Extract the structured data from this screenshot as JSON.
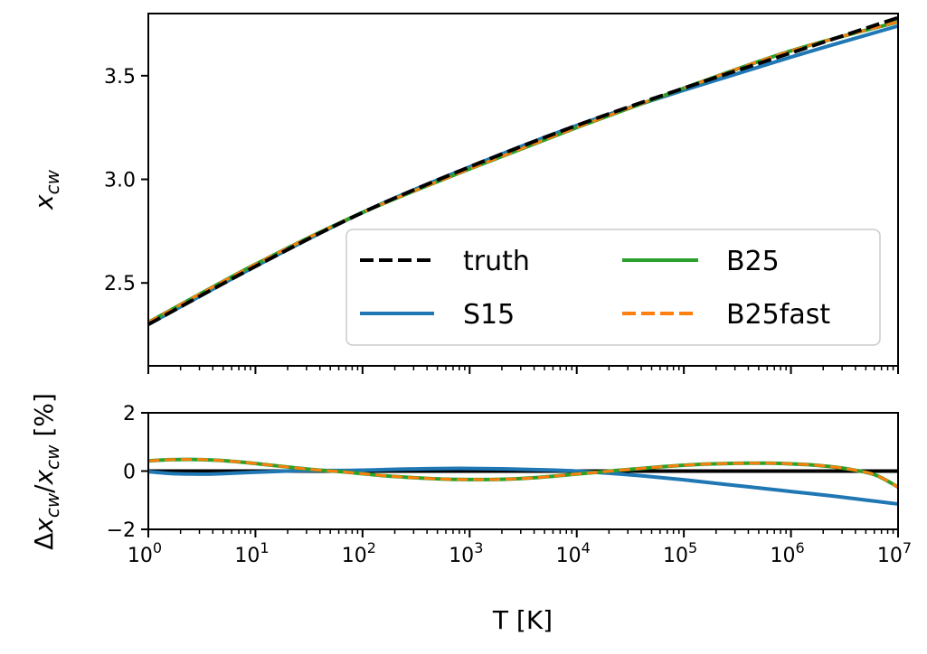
{
  "chart_data": [
    {
      "type": "line",
      "panel": "top",
      "xscale": "log",
      "xlim": [
        1,
        10000000
      ],
      "ylim": [
        2.1,
        3.8
      ],
      "ylabel": "x_cw",
      "yticks": [
        "2.5",
        "3.0",
        "3.5"
      ],
      "ytick_values": [
        2.5,
        3.0,
        3.5
      ],
      "x_log10": [
        0,
        1,
        2,
        3,
        4,
        5,
        6,
        7
      ],
      "series": [
        {
          "name": "truth",
          "color": "#000000",
          "dash": "dashed",
          "values": [
            2.3,
            2.58,
            2.84,
            3.06,
            3.26,
            3.44,
            3.61,
            3.78
          ]
        },
        {
          "name": "S15",
          "color": "#1f77b4",
          "dash": "solid",
          "values": [
            2.3,
            2.58,
            2.84,
            3.06,
            3.26,
            3.43,
            3.59,
            3.74
          ]
        },
        {
          "name": "B25",
          "color": "#2ca02c",
          "dash": "solid",
          "values": [
            2.31,
            2.59,
            2.84,
            3.05,
            3.25,
            3.44,
            3.62,
            3.76
          ]
        },
        {
          "name": "B25fast",
          "color": "#ff7f0e",
          "dash": "dashed",
          "values": [
            2.31,
            2.59,
            2.84,
            3.05,
            3.25,
            3.44,
            3.62,
            3.76
          ]
        }
      ],
      "legend": {
        "location": "lower-right",
        "columns": 2,
        "order": [
          "truth",
          "S15",
          "B25",
          "B25fast"
        ]
      }
    },
    {
      "type": "line",
      "panel": "bottom",
      "xscale": "log",
      "xlabel": "T [K]",
      "ylabel": "Δx_cw/x_cw [%]",
      "xlim": [
        1,
        10000000
      ],
      "ylim": [
        -2,
        2
      ],
      "yticks": [
        "−2",
        "0",
        "2"
      ],
      "ytick_values": [
        -2,
        0,
        2
      ],
      "xtick_exponents": [
        "0",
        "1",
        "2",
        "3",
        "4",
        "5",
        "6",
        "7"
      ],
      "xtick_base": "10",
      "x_log10": [
        0,
        0.2,
        0.4,
        0.6,
        0.8,
        1.0,
        1.2,
        1.4,
        1.6,
        1.8,
        2.0,
        2.2,
        2.4,
        2.6,
        2.8,
        3.0,
        3.2,
        3.4,
        3.6,
        3.8,
        4.0,
        4.2,
        4.4,
        4.6,
        4.8,
        5.0,
        5.2,
        5.4,
        5.6,
        5.8,
        6.0,
        6.2,
        6.4,
        6.6,
        6.8,
        7.0
      ],
      "series": [
        {
          "name": "truth",
          "color": "#000000",
          "dash": "solid",
          "values": [
            0,
            0,
            0,
            0,
            0,
            0,
            0,
            0,
            0,
            0,
            0,
            0,
            0,
            0,
            0,
            0,
            0,
            0,
            0,
            0,
            0,
            0,
            0,
            0,
            0,
            0,
            0,
            0,
            0,
            0,
            0,
            0,
            0,
            0,
            0,
            0
          ]
        },
        {
          "name": "S15",
          "color": "#1f77b4",
          "dash": "solid",
          "values": [
            -0.02,
            -0.08,
            -0.1,
            -0.1,
            -0.07,
            -0.04,
            -0.01,
            0.01,
            0.02,
            0.02,
            0.03,
            0.05,
            0.07,
            0.08,
            0.09,
            0.09,
            0.08,
            0.07,
            0.05,
            0.03,
            0.0,
            -0.05,
            -0.1,
            -0.16,
            -0.23,
            -0.3,
            -0.38,
            -0.46,
            -0.54,
            -0.62,
            -0.7,
            -0.78,
            -0.86,
            -0.95,
            -1.04,
            -1.13
          ]
        },
        {
          "name": "B25",
          "color": "#2ca02c",
          "dash": "solid",
          "values": [
            0.35,
            0.39,
            0.4,
            0.38,
            0.33,
            0.26,
            0.18,
            0.1,
            0.03,
            -0.02,
            -0.09,
            -0.16,
            -0.21,
            -0.25,
            -0.28,
            -0.29,
            -0.29,
            -0.27,
            -0.23,
            -0.17,
            -0.1,
            -0.04,
            0.03,
            0.09,
            0.15,
            0.2,
            0.24,
            0.26,
            0.27,
            0.27,
            0.25,
            0.21,
            0.14,
            0.03,
            -0.15,
            -0.55
          ]
        },
        {
          "name": "B25fast",
          "color": "#ff7f0e",
          "dash": "dashed",
          "values": [
            0.35,
            0.39,
            0.4,
            0.38,
            0.33,
            0.26,
            0.18,
            0.1,
            0.03,
            -0.02,
            -0.09,
            -0.16,
            -0.21,
            -0.25,
            -0.28,
            -0.29,
            -0.29,
            -0.27,
            -0.23,
            -0.17,
            -0.1,
            -0.04,
            0.03,
            0.09,
            0.15,
            0.2,
            0.24,
            0.26,
            0.27,
            0.27,
            0.25,
            0.21,
            0.14,
            0.03,
            -0.15,
            -0.55
          ]
        }
      ]
    }
  ]
}
